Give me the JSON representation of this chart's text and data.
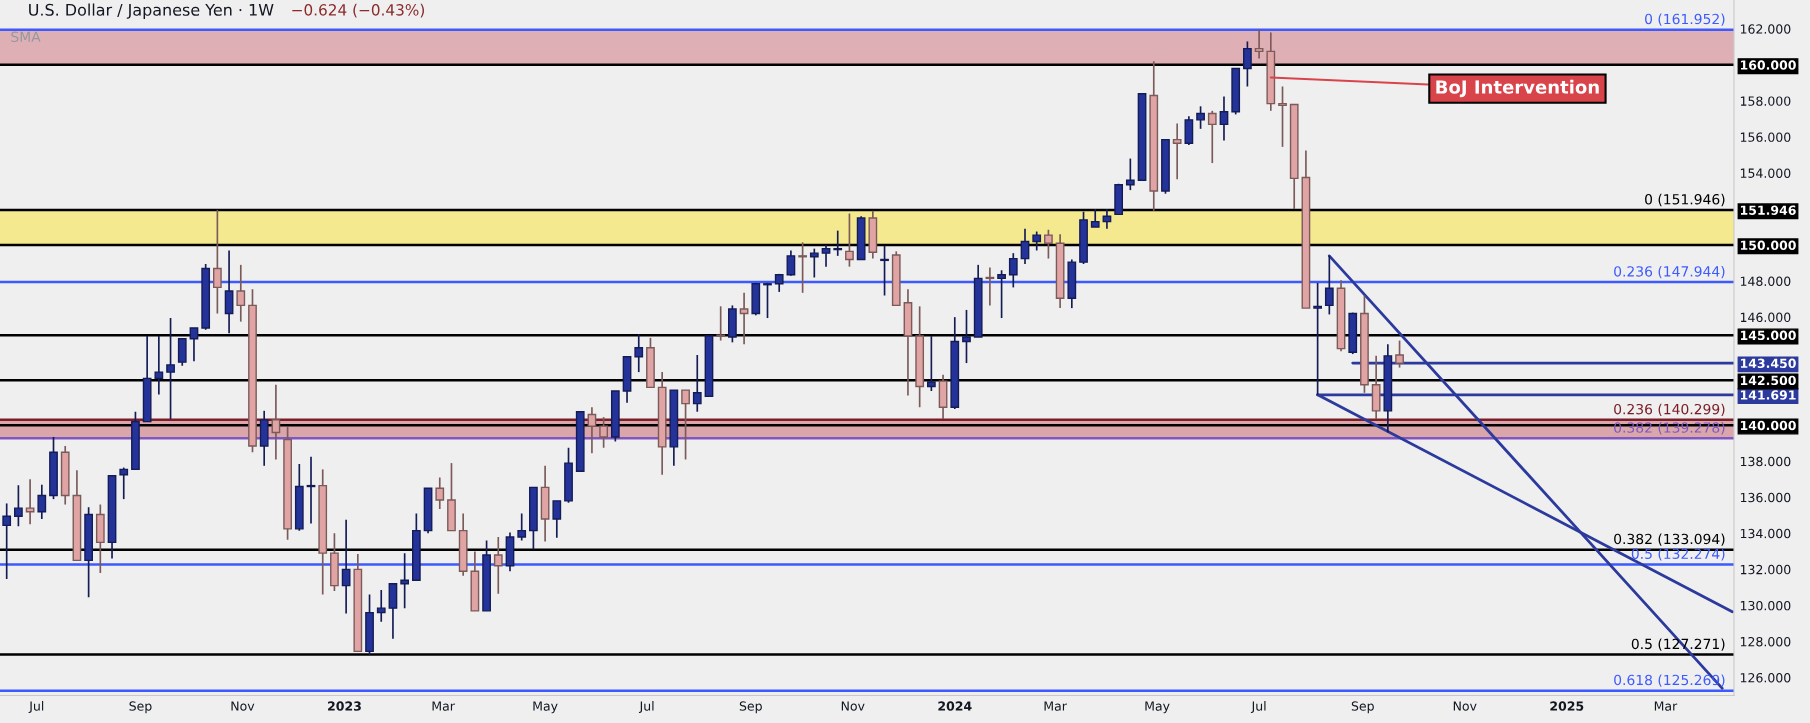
{
  "chart_data": {
    "type": "candlestick",
    "title": "U.S. Dollar / Japanese Yen · 1W",
    "subtitle": "−0.624 (−0.43%)",
    "annotations": [
      "SMA",
      {
        "text": "BoJ Intervention",
        "x": "2024-07-08",
        "y": 159.3
      }
    ],
    "x": [
      "2022-06-13",
      "2022-06-20",
      "2022-06-27",
      "2022-07-04",
      "2022-07-11",
      "2022-07-18",
      "2022-07-25",
      "2022-08-01",
      "2022-08-08",
      "2022-08-15",
      "2022-08-22",
      "2022-08-29",
      "2022-09-05",
      "2022-09-12",
      "2022-09-19",
      "2022-09-26",
      "2022-10-03",
      "2022-10-10",
      "2022-10-17",
      "2022-10-24",
      "2022-10-31",
      "2022-11-07",
      "2022-11-14",
      "2022-11-21",
      "2022-11-28",
      "2022-12-05",
      "2022-12-12",
      "2022-12-19",
      "2022-12-26",
      "2023-01-02",
      "2023-01-09",
      "2023-01-16",
      "2023-01-23",
      "2023-01-30",
      "2023-02-06",
      "2023-02-13",
      "2023-02-20",
      "2023-02-27",
      "2023-03-06",
      "2023-03-13",
      "2023-03-20",
      "2023-03-27",
      "2023-04-03",
      "2023-04-10",
      "2023-04-17",
      "2023-04-24",
      "2023-05-01",
      "2023-05-08",
      "2023-05-15",
      "2023-05-22",
      "2023-05-29",
      "2023-06-05",
      "2023-06-12",
      "2023-06-19",
      "2023-06-26",
      "2023-07-03",
      "2023-07-10",
      "2023-07-17",
      "2023-07-24",
      "2023-07-31",
      "2023-08-07",
      "2023-08-14",
      "2023-08-21",
      "2023-08-28",
      "2023-09-04",
      "2023-09-11",
      "2023-09-18",
      "2023-09-25",
      "2023-10-02",
      "2023-10-09",
      "2023-10-16",
      "2023-10-23",
      "2023-10-30",
      "2023-11-06",
      "2023-11-13",
      "2023-11-20",
      "2023-11-27",
      "2023-12-04",
      "2023-12-11",
      "2023-12-18",
      "2023-12-25",
      "2024-01-01",
      "2024-01-08",
      "2024-01-15",
      "2024-01-22",
      "2024-01-29",
      "2024-02-05",
      "2024-02-12",
      "2024-02-19",
      "2024-02-26",
      "2024-03-04",
      "2024-03-11",
      "2024-03-18",
      "2024-03-25",
      "2024-04-01",
      "2024-04-08",
      "2024-04-15",
      "2024-04-22",
      "2024-04-29",
      "2024-05-06",
      "2024-05-13",
      "2024-05-20",
      "2024-05-27",
      "2024-06-03",
      "2024-06-10",
      "2024-06-17",
      "2024-06-24",
      "2024-07-01",
      "2024-07-08",
      "2024-07-15",
      "2024-07-22",
      "2024-07-29",
      "2024-08-05",
      "2024-08-12",
      "2024-08-19",
      "2024-08-26",
      "2024-09-02",
      "2024-09-09",
      "2024-09-16",
      "2024-09-23"
    ],
    "ohlc": [
      [
        134.44,
        135.66,
        131.46,
        134.95
      ],
      [
        134.95,
        136.67,
        134.4,
        135.4
      ],
      [
        135.4,
        137.0,
        134.5,
        135.2
      ],
      [
        135.2,
        136.7,
        134.8,
        136.1
      ],
      [
        136.1,
        139.35,
        135.9,
        138.5
      ],
      [
        138.5,
        138.85,
        135.6,
        136.1
      ],
      [
        136.1,
        137.5,
        132.5,
        132.5
      ],
      [
        132.5,
        135.45,
        130.45,
        135.05
      ],
      [
        135.05,
        135.6,
        131.8,
        133.5
      ],
      [
        133.5,
        137.2,
        132.6,
        137.2
      ],
      [
        137.25,
        137.65,
        135.9,
        137.55
      ],
      [
        137.55,
        140.75,
        137.55,
        140.2
      ],
      [
        140.2,
        144.95,
        140.2,
        142.6
      ],
      [
        142.6,
        144.95,
        141.7,
        142.95
      ],
      [
        142.95,
        145.95,
        140.35,
        143.35
      ],
      [
        143.5,
        144.8,
        143.3,
        144.8
      ],
      [
        144.8,
        145.4,
        143.55,
        145.4
      ],
      [
        145.4,
        148.95,
        145.3,
        148.7
      ],
      [
        148.7,
        151.95,
        146.2,
        147.65
      ],
      [
        146.2,
        149.7,
        145.1,
        147.45
      ],
      [
        147.45,
        148.9,
        145.75,
        146.65
      ],
      [
        146.65,
        147.55,
        138.5,
        138.85
      ],
      [
        138.85,
        140.8,
        137.75,
        140.3
      ],
      [
        140.3,
        142.25,
        138.1,
        139.6
      ],
      [
        139.2,
        139.9,
        133.65,
        134.25
      ],
      [
        134.25,
        137.85,
        134.15,
        136.6
      ],
      [
        136.6,
        138.25,
        134.55,
        136.65
      ],
      [
        136.65,
        137.55,
        130.6,
        132.9
      ],
      [
        132.9,
        134.0,
        130.8,
        131.1
      ],
      [
        131.1,
        134.75,
        129.55,
        132.0
      ],
      [
        132.0,
        132.85,
        127.45,
        127.45
      ],
      [
        127.45,
        130.6,
        127.25,
        129.6
      ],
      [
        129.6,
        130.85,
        129.1,
        129.85
      ],
      [
        129.85,
        131.2,
        128.15,
        131.2
      ],
      [
        131.2,
        132.9,
        129.85,
        131.4
      ],
      [
        131.4,
        135.1,
        131.4,
        134.15
      ],
      [
        134.15,
        136.5,
        134.0,
        136.5
      ],
      [
        136.5,
        137.1,
        135.35,
        135.85
      ],
      [
        135.85,
        137.9,
        134.15,
        134.15
      ],
      [
        134.15,
        135.1,
        131.65,
        131.9
      ],
      [
        131.9,
        133.0,
        129.7,
        129.7
      ],
      [
        129.7,
        133.6,
        129.7,
        132.8
      ],
      [
        132.8,
        133.8,
        130.65,
        132.2
      ],
      [
        132.2,
        134.05,
        131.9,
        133.8
      ],
      [
        133.8,
        135.1,
        133.6,
        134.15
      ],
      [
        134.15,
        136.55,
        133.1,
        136.55
      ],
      [
        136.55,
        137.75,
        133.55,
        134.8
      ],
      [
        134.8,
        135.8,
        133.75,
        135.8
      ],
      [
        135.8,
        138.75,
        135.7,
        137.9
      ],
      [
        137.45,
        140.75,
        137.45,
        140.75
      ],
      [
        140.6,
        141.0,
        138.45,
        139.95
      ],
      [
        139.95,
        140.45,
        138.75,
        139.35
      ],
      [
        139.35,
        141.9,
        139.1,
        141.9
      ],
      [
        141.9,
        143.8,
        141.25,
        143.8
      ],
      [
        143.8,
        145.05,
        142.95,
        144.3
      ],
      [
        144.3,
        144.85,
        142.1,
        142.1
      ],
      [
        142.1,
        142.95,
        137.25,
        138.8
      ],
      [
        138.8,
        141.95,
        137.75,
        141.95
      ],
      [
        141.95,
        141.95,
        138.1,
        141.2
      ],
      [
        141.2,
        143.9,
        140.75,
        141.8
      ],
      [
        141.6,
        144.95,
        141.6,
        144.95
      ],
      [
        145.0,
        146.6,
        144.7,
        144.95
      ],
      [
        144.9,
        146.65,
        144.6,
        146.45
      ],
      [
        146.45,
        147.35,
        144.5,
        146.2
      ],
      [
        146.2,
        147.9,
        146.1,
        147.85
      ],
      [
        147.8,
        147.9,
        145.95,
        147.85
      ],
      [
        147.85,
        148.4,
        147.4,
        148.35
      ],
      [
        148.35,
        149.7,
        148.3,
        149.4
      ],
      [
        149.4,
        150.15,
        147.35,
        149.35
      ],
      [
        149.35,
        149.8,
        148.2,
        149.55
      ],
      [
        149.55,
        150.0,
        148.8,
        149.8
      ],
      [
        149.75,
        150.8,
        149.4,
        149.8
      ],
      [
        149.65,
        151.75,
        148.8,
        149.2
      ],
      [
        149.2,
        151.6,
        149.2,
        151.5
      ],
      [
        151.5,
        151.9,
        149.25,
        149.6
      ],
      [
        149.15,
        149.95,
        147.2,
        149.2
      ],
      [
        149.45,
        149.65,
        146.65,
        146.65
      ],
      [
        146.8,
        147.55,
        141.65,
        144.95
      ],
      [
        144.95,
        146.6,
        141.0,
        142.15
      ],
      [
        142.15,
        144.95,
        141.9,
        142.4
      ],
      [
        142.45,
        142.8,
        140.35,
        141.0
      ],
      [
        141.0,
        146.0,
        140.9,
        144.65
      ],
      [
        144.65,
        146.4,
        143.45,
        144.9
      ],
      [
        144.9,
        148.9,
        144.9,
        148.15
      ],
      [
        148.2,
        148.75,
        146.65,
        148.15
      ],
      [
        148.15,
        148.6,
        145.95,
        148.35
      ],
      [
        148.35,
        149.55,
        147.65,
        149.25
      ],
      [
        149.25,
        150.9,
        148.95,
        150.2
      ],
      [
        150.2,
        150.75,
        149.7,
        150.55
      ],
      [
        150.55,
        150.85,
        149.25,
        150.1
      ],
      [
        150.1,
        150.6,
        146.5,
        147.05
      ],
      [
        147.05,
        149.2,
        146.5,
        149.05
      ],
      [
        149.05,
        151.85,
        148.95,
        151.4
      ],
      [
        151.0,
        152.0,
        151.0,
        151.3
      ],
      [
        151.3,
        152.0,
        150.9,
        151.6
      ],
      [
        151.7,
        153.4,
        151.7,
        153.35
      ],
      [
        153.35,
        154.8,
        153.05,
        153.6
      ],
      [
        153.6,
        158.4,
        153.6,
        158.4
      ],
      [
        158.3,
        160.2,
        151.9,
        153.0
      ],
      [
        153.0,
        155.85,
        152.85,
        155.85
      ],
      [
        155.85,
        156.75,
        153.65,
        155.65
      ],
      [
        155.65,
        157.15,
        155.55,
        156.95
      ],
      [
        156.95,
        157.7,
        156.45,
        157.3
      ],
      [
        157.3,
        157.45,
        154.55,
        156.7
      ],
      [
        156.7,
        158.25,
        155.8,
        157.4
      ],
      [
        157.4,
        159.8,
        157.25,
        159.8
      ],
      [
        159.8,
        161.3,
        158.8,
        160.9
      ],
      [
        160.9,
        161.95,
        160.35,
        160.75
      ],
      [
        160.75,
        161.8,
        157.45,
        157.85
      ],
      [
        157.85,
        158.8,
        155.45,
        157.75
      ],
      [
        157.8,
        157.8,
        152.0,
        153.7
      ],
      [
        153.75,
        155.25,
        146.5,
        146.5
      ],
      [
        146.5,
        147.9,
        141.691,
        146.6
      ],
      [
        146.65,
        149.4,
        146.15,
        147.6
      ],
      [
        147.6,
        148.05,
        144.1,
        144.25
      ],
      [
        144.05,
        146.25,
        143.95,
        146.2
      ],
      [
        146.2,
        147.2,
        141.8,
        142.25
      ],
      [
        142.25,
        143.85,
        140.35,
        140.8
      ],
      [
        140.8,
        144.5,
        139.6,
        143.85
      ],
      [
        143.9,
        144.7,
        143.2,
        143.45
      ]
    ],
    "colors": [
      "#24339a",
      "#24339a",
      "#e0a4a4",
      "#24339a",
      "#24339a",
      "#e0a4a4",
      "#e0a4a4",
      "#24339a",
      "#e0a4a4",
      "#24339a",
      "#24339a",
      "#24339a",
      "#24339a",
      "#24339a",
      "#24339a",
      "#24339a",
      "#24339a",
      "#24339a",
      "#e0a4a4",
      "#24339a",
      "#e0a4a4",
      "#e0a4a4",
      "#24339a",
      "#e0a4a4",
      "#e0a4a4",
      "#24339a",
      "#24339a",
      "#e0a4a4",
      "#e0a4a4",
      "#24339a",
      "#e0a4a4",
      "#24339a",
      "#24339a",
      "#24339a",
      "#24339a",
      "#24339a",
      "#24339a",
      "#e0a4a4",
      "#e0a4a4",
      "#e0a4a4",
      "#e0a4a4",
      "#24339a",
      "#e0a4a4",
      "#24339a",
      "#24339a",
      "#24339a",
      "#e0a4a4",
      "#24339a",
      "#24339a",
      "#24339a",
      "#e0a4a4",
      "#e0a4a4",
      "#24339a",
      "#24339a",
      "#24339a",
      "#e0a4a4",
      "#e0a4a4",
      "#24339a",
      "#e0a4a4",
      "#24339a",
      "#24339a",
      "#e0a4a4",
      "#24339a",
      "#e0a4a4",
      "#24339a",
      "#24339a",
      "#24339a",
      "#24339a",
      "#e0a4a4",
      "#24339a",
      "#24339a",
      "#24339a",
      "#e0a4a4",
      "#24339a",
      "#e0a4a4",
      "#24339a",
      "#e0a4a4",
      "#e0a4a4",
      "#e0a4a4",
      "#24339a",
      "#e0a4a4",
      "#24339a",
      "#24339a",
      "#24339a",
      "#e0a4a4",
      "#24339a",
      "#24339a",
      "#24339a",
      "#24339a",
      "#e0a4a4",
      "#e0a4a4",
      "#24339a",
      "#24339a",
      "#24339a",
      "#24339a",
      "#24339a",
      "#24339a",
      "#24339a",
      "#e0a4a4",
      "#24339a",
      "#e0a4a4",
      "#24339a",
      "#24339a",
      "#e0a4a4",
      "#24339a",
      "#24339a",
      "#24339a",
      "#e0a4a4",
      "#e0a4a4",
      "#e0a4a4",
      "#e0a4a4",
      "#e0a4a4",
      "#24339a",
      "#24339a",
      "#e0a4a4",
      "#24339a",
      "#e0a4a4",
      "#e0a4a4",
      "#24339a",
      "#e0a4a4"
    ],
    "series": [
      {
        "type": "line",
        "color": "#2b3a9c",
        "x": [
          "2024-08-12",
          "2025-04-04"
        ],
        "values": [
          149.4,
          125.4
        ]
      },
      {
        "type": "line",
        "color": "#2b3a9c",
        "x": [
          "2024-08-05",
          "2025-04-10"
        ],
        "values": [
          141.691,
          129.65
        ]
      },
      {
        "type": "line",
        "color": "#2b3a9c",
        "x": [
          "2024-08-26",
          "2025-04-11"
        ],
        "values": [
          143.45,
          143.45
        ]
      },
      {
        "type": "line",
        "color": "#2b3a9c",
        "x": [
          "2024-08-05",
          "2025-04-11"
        ],
        "values": [
          141.691,
          141.691
        ]
      }
    ],
    "bands": [
      {
        "axis": "y",
        "from": 150,
        "to": 151.946,
        "color": "#f4e98e"
      },
      {
        "axis": "y",
        "from": 160,
        "to": 161.952,
        "color": "#deb0b5"
      },
      {
        "axis": "y",
        "from": 139.278,
        "to": 140.299,
        "color": "#dba6aa"
      }
    ],
    "ref_lines": [
      {
        "axis": "y",
        "value": 161.952,
        "label": "0 (161.952)",
        "color": "#3d5afe"
      },
      {
        "axis": "y",
        "value": 160,
        "color": "#000000"
      },
      {
        "axis": "y",
        "value": 151.946,
        "label": "0 (151.946)",
        "color": "#000000"
      },
      {
        "axis": "y",
        "value": 150,
        "color": "#000000"
      },
      {
        "axis": "y",
        "value": 147.944,
        "label": "0.236 (147.944)",
        "color": "#3d5afe"
      },
      {
        "axis": "y",
        "value": 145,
        "color": "#000000"
      },
      {
        "axis": "y",
        "value": 142.5,
        "color": "#000000"
      },
      {
        "axis": "y",
        "value": 140.299,
        "label": "0.236 (140.299)",
        "color": "#7a1f2a"
      },
      {
        "axis": "y",
        "value": 140,
        "color": "#000000"
      },
      {
        "axis": "y",
        "value": 139.278,
        "label": "0.382 (139.278)",
        "color": "#7e57c2"
      },
      {
        "axis": "y",
        "value": 133.094,
        "label": "0.382 (133.094)",
        "color": "#000000"
      },
      {
        "axis": "y",
        "value": 132.274,
        "label": "0.5 (132.274)",
        "color": "#3d5afe"
      },
      {
        "axis": "y",
        "value": 127.271,
        "label": "0.5 (127.271)",
        "color": "#000000"
      },
      {
        "axis": "y",
        "value": 125.269,
        "label": "0.618 (125.269)",
        "color": "#3d5afe"
      }
    ],
    "xlim": [
      "2022-06-09",
      "2025-04-11"
    ],
    "xticks": [
      {
        "value": "2022-07-01",
        "label": "Jul"
      },
      {
        "value": "2022-09-01",
        "label": "Sep"
      },
      {
        "value": "2022-11-01",
        "label": "Nov"
      },
      {
        "value": "2023-01-01",
        "label": "2023"
      },
      {
        "value": "2023-03-01",
        "label": "Mar"
      },
      {
        "value": "2023-05-01",
        "label": "May"
      },
      {
        "value": "2023-07-01",
        "label": "Jul"
      },
      {
        "value": "2023-09-01",
        "label": "Sep"
      },
      {
        "value": "2023-11-01",
        "label": "Nov"
      },
      {
        "value": "2024-01-01",
        "label": "2024"
      },
      {
        "value": "2024-03-01",
        "label": "Mar"
      },
      {
        "value": "2024-05-01",
        "label": "May"
      },
      {
        "value": "2024-07-01",
        "label": "Jul"
      },
      {
        "value": "2024-09-01",
        "label": "Sep"
      },
      {
        "value": "2024-11-01",
        "label": "Nov"
      },
      {
        "value": "2025-01-01",
        "label": "2025"
      },
      {
        "value": "2025-03-01",
        "label": "Mar"
      }
    ],
    "ylim": [
      125.0,
      163.6
    ],
    "yticks": [
      {
        "value": 126,
        "label": "126.000"
      },
      {
        "value": 128,
        "label": "128.000"
      },
      {
        "value": 130,
        "label": "130.000"
      },
      {
        "value": 132,
        "label": "132.000"
      },
      {
        "value": 134,
        "label": "134.000"
      },
      {
        "value": 136,
        "label": "136.000"
      },
      {
        "value": 138,
        "label": "138.000"
      },
      {
        "value": 140,
        "label": "140.000"
      },
      {
        "value": 141.691,
        "label": "141.691"
      },
      {
        "value": 142.5,
        "label": "142.500"
      },
      {
        "value": 143.45,
        "label": "143.450"
      },
      {
        "value": 145,
        "label": "145.000"
      },
      {
        "value": 146,
        "label": "146.000"
      },
      {
        "value": 148,
        "label": "148.000"
      },
      {
        "value": 150,
        "label": "150.000"
      },
      {
        "value": 151.946,
        "label": "151.946"
      },
      {
        "value": 154,
        "label": "154.000"
      },
      {
        "value": 156,
        "label": "156.000"
      },
      {
        "value": 158,
        "label": "158.000"
      },
      {
        "value": 160,
        "label": "160.000"
      },
      {
        "value": 162,
        "label": "162.000"
      }
    ]
  }
}
